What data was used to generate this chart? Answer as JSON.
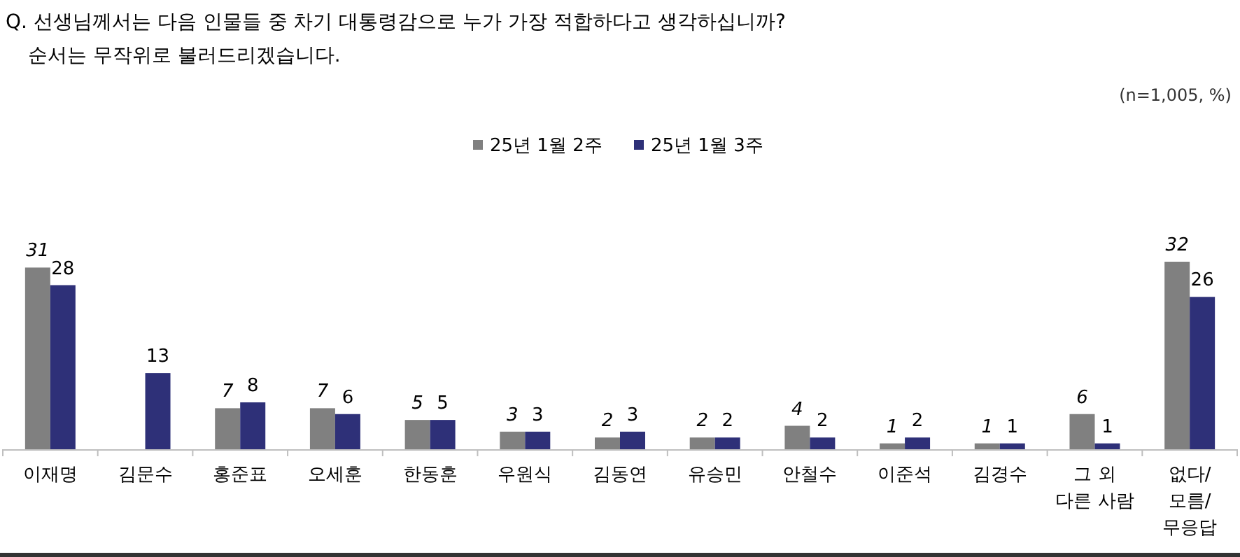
{
  "chart_data": {
    "type": "bar",
    "title": "Q. 선생님께서는 다음 인물들 중 차기 대통령감으로 누가 가장 적합하다고 생각하십니까?",
    "subtitle": "순서는 무작위로 불러드리겠습니다.",
    "annotations": [
      "(n=1,005,  %)"
    ],
    "categories": [
      "이재명",
      "김문수",
      "홍준표",
      "오세훈",
      "한동훈",
      "우원식",
      "김동연",
      "유승민",
      "안철수",
      "이준석",
      "김경수",
      "그 외 다른 사람",
      "없다/모름/무응답"
    ],
    "series": [
      {
        "name": "25년 1월 2주",
        "color": "#808080",
        "values": [
          31,
          null,
          7,
          7,
          5,
          3,
          2,
          2,
          4,
          1,
          1,
          6,
          32
        ]
      },
      {
        "name": "25년 1월 3주",
        "color": "#2e3078",
        "values": [
          28,
          13,
          8,
          6,
          5,
          3,
          3,
          2,
          2,
          2,
          1,
          1,
          26
        ]
      }
    ],
    "data_labels": true,
    "legend": "top"
  }
}
